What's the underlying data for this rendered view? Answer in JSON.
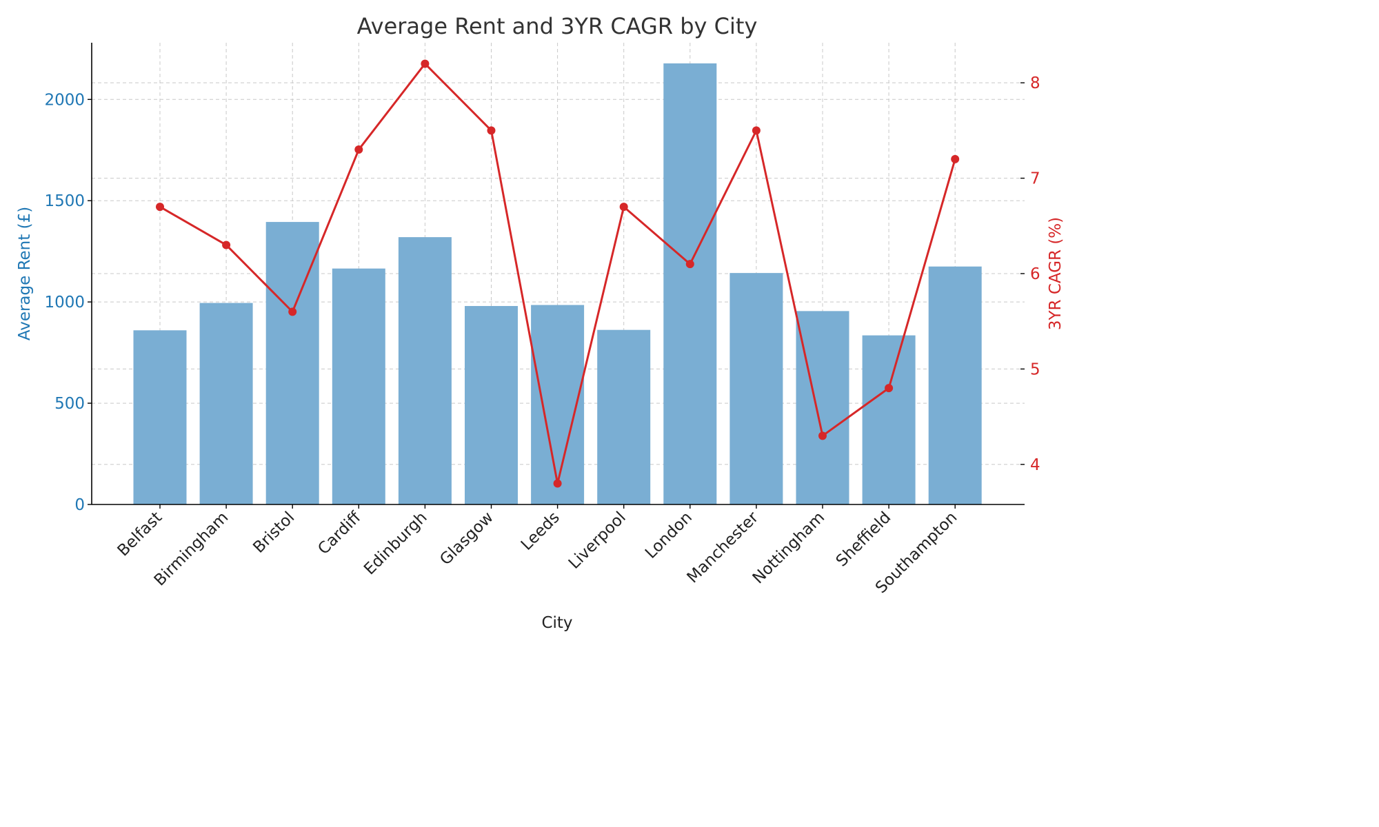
{
  "chart_data": {
    "type": "bar+line",
    "title": "Average Rent and 3YR CAGR by City",
    "xlabel": "City",
    "ylabel": "Average Rent (£)",
    "y2label": "3YR CAGR (%)",
    "categories": [
      "Belfast",
      "Birmingham",
      "Bristol",
      "Cardiff",
      "Edinburgh",
      "Glasgow",
      "Leeds",
      "Liverpool",
      "London",
      "Manchester",
      "Nottingham",
      "Sheffield",
      "Southampton"
    ],
    "series": [
      {
        "axis": "left",
        "type": "bar",
        "color": "#7aaed3",
        "values": [
          860,
          995,
          1395,
          1165,
          1320,
          980,
          985,
          862,
          2178,
          1143,
          955,
          835,
          1175
        ]
      },
      {
        "axis": "right",
        "type": "line",
        "color": "#d62728",
        "values": [
          6.7,
          6.3,
          5.6,
          7.3,
          8.2,
          7.5,
          3.8,
          6.7,
          6.1,
          7.5,
          4.3,
          4.8,
          7.2
        ]
      }
    ],
    "ylim": [
      0,
      2280
    ],
    "y2lim": [
      3.58,
      8.42
    ],
    "yticks": [
      0,
      500,
      1000,
      1500,
      2000
    ],
    "y2ticks": [
      4,
      5,
      6,
      7,
      8
    ],
    "grid": true,
    "left_axis_color": "#1f77b4",
    "right_axis_color": "#d62728"
  }
}
